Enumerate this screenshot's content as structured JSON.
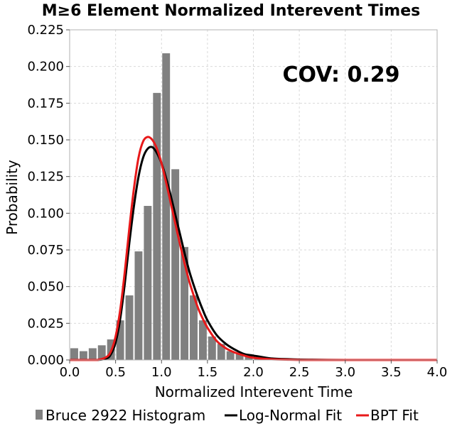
{
  "chart_data": {
    "type": "bar",
    "title": "M≥6 Element Normalized Interevent Times",
    "xlabel": "Normalized Interevent Time",
    "ylabel": "Probability",
    "xlim": [
      0,
      4.0
    ],
    "ylim": [
      0,
      0.225
    ],
    "x_ticks": [
      "0.0",
      "0.5",
      "1.0",
      "1.5",
      "2.0",
      "2.5",
      "3.0",
      "3.5",
      "4.0"
    ],
    "y_ticks": [
      "0.000",
      "0.025",
      "0.050",
      "0.075",
      "0.100",
      "0.125",
      "0.150",
      "0.175",
      "0.200",
      "0.225"
    ],
    "grid": true,
    "annotation": "COV: 0.29",
    "legend_position": "bottom",
    "histogram": {
      "name": "Bruce 2922 Histogram",
      "color": "#808080",
      "bin_width": 0.1,
      "bin_starts": [
        0.0,
        0.1,
        0.2,
        0.3,
        0.4,
        0.5,
        0.6,
        0.7,
        0.8,
        0.9,
        1.0,
        1.1,
        1.2,
        1.3,
        1.4,
        1.5,
        1.6,
        1.7,
        1.8,
        1.9,
        2.0,
        2.1,
        2.2
      ],
      "values": [
        0.008,
        0.006,
        0.008,
        0.01,
        0.014,
        0.027,
        0.044,
        0.074,
        0.105,
        0.182,
        0.209,
        0.13,
        0.077,
        0.044,
        0.027,
        0.016,
        0.011,
        0.006,
        0.004,
        0.003,
        0.002,
        0.001,
        0.001
      ]
    },
    "series": [
      {
        "name": "Log-Normal Fit",
        "color": "#000000",
        "x": [
          0.0,
          0.2,
          0.3,
          0.4,
          0.45,
          0.5,
          0.55,
          0.6,
          0.65,
          0.7,
          0.75,
          0.8,
          0.85,
          0.9,
          0.95,
          1.0,
          1.05,
          1.1,
          1.15,
          1.2,
          1.25,
          1.3,
          1.35,
          1.4,
          1.45,
          1.5,
          1.6,
          1.7,
          1.8,
          1.9,
          2.0,
          2.2,
          2.4,
          2.6,
          3.0,
          4.0
        ],
        "values": [
          0.0,
          0.0,
          0.0,
          0.001,
          0.004,
          0.012,
          0.028,
          0.052,
          0.08,
          0.105,
          0.125,
          0.138,
          0.144,
          0.145,
          0.141,
          0.134,
          0.124,
          0.112,
          0.099,
          0.086,
          0.073,
          0.061,
          0.051,
          0.042,
          0.034,
          0.027,
          0.017,
          0.011,
          0.007,
          0.004,
          0.003,
          0.001,
          0.0005,
          0.0002,
          0.0,
          0.0
        ]
      },
      {
        "name": "BPT Fit",
        "color": "#e8191a",
        "x": [
          0.0,
          0.2,
          0.3,
          0.4,
          0.45,
          0.5,
          0.55,
          0.6,
          0.65,
          0.7,
          0.75,
          0.8,
          0.85,
          0.9,
          0.95,
          1.0,
          1.05,
          1.1,
          1.15,
          1.2,
          1.25,
          1.3,
          1.35,
          1.4,
          1.45,
          1.5,
          1.6,
          1.7,
          1.8,
          1.9,
          2.0,
          2.2,
          2.4,
          2.6,
          3.0,
          4.0
        ],
        "values": [
          0.0,
          0.0,
          0.0,
          0.002,
          0.006,
          0.016,
          0.034,
          0.06,
          0.09,
          0.117,
          0.138,
          0.149,
          0.152,
          0.15,
          0.144,
          0.134,
          0.121,
          0.107,
          0.093,
          0.079,
          0.066,
          0.054,
          0.044,
          0.035,
          0.028,
          0.022,
          0.013,
          0.008,
          0.005,
          0.003,
          0.0015,
          0.0005,
          0.0002,
          0.0,
          0.0,
          0.0
        ]
      }
    ]
  }
}
